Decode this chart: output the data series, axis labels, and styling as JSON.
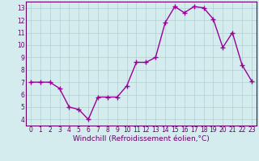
{
  "x": [
    0,
    1,
    2,
    3,
    4,
    5,
    6,
    7,
    8,
    9,
    10,
    11,
    12,
    13,
    14,
    15,
    16,
    17,
    18,
    19,
    20,
    21,
    22,
    23
  ],
  "y": [
    7.0,
    7.0,
    7.0,
    6.5,
    5.0,
    4.8,
    4.0,
    5.8,
    5.8,
    5.8,
    6.7,
    8.6,
    8.6,
    9.0,
    11.8,
    13.1,
    12.6,
    13.1,
    13.0,
    12.1,
    9.8,
    11.0,
    8.4,
    7.1
  ],
  "line_color": "#990099",
  "marker": "+",
  "marker_size": 4,
  "line_width": 1.0,
  "background_color": "#d4ecee",
  "grid_color": "#b0ced2",
  "xlabel": "Windchill (Refroidissement éolien,°C)",
  "xlim": [
    -0.5,
    23.5
  ],
  "ylim": [
    3.5,
    13.5
  ],
  "yticks": [
    4,
    5,
    6,
    7,
    8,
    9,
    10,
    11,
    12,
    13
  ],
  "xticks": [
    0,
    1,
    2,
    3,
    4,
    5,
    6,
    7,
    8,
    9,
    10,
    11,
    12,
    13,
    14,
    15,
    16,
    17,
    18,
    19,
    20,
    21,
    22,
    23
  ],
  "tick_label_fontsize": 5.5,
  "xlabel_fontsize": 6.5,
  "axis_color": "#660066",
  "spine_color": "#660066"
}
